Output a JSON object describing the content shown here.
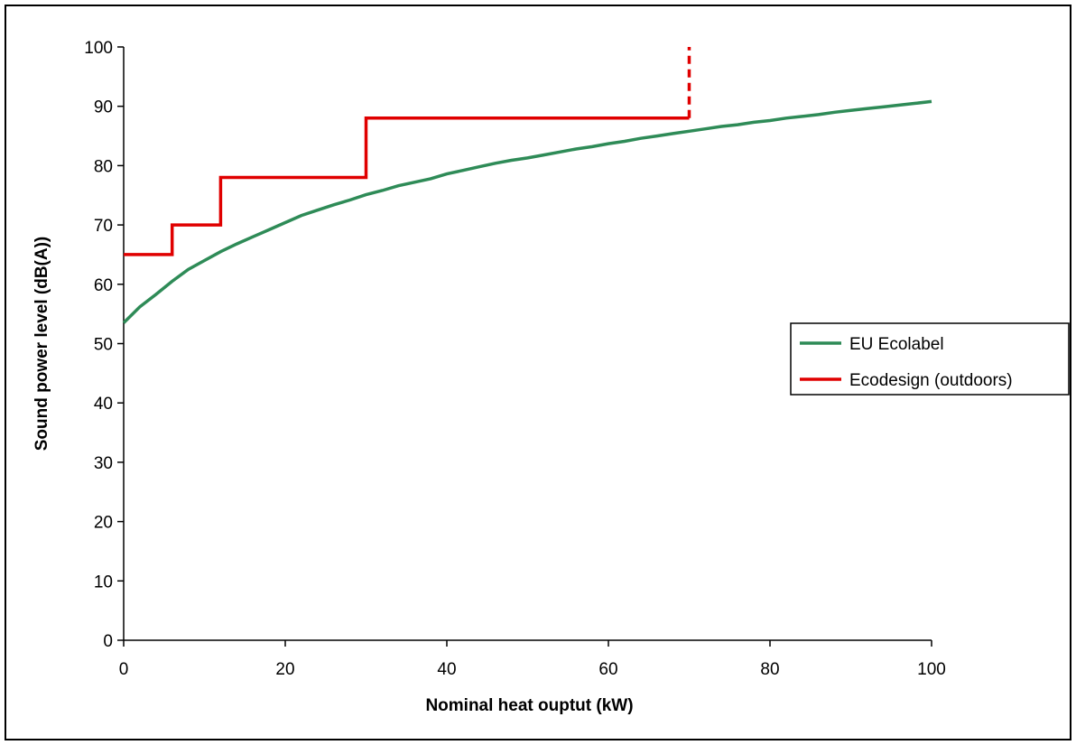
{
  "chart_data": {
    "type": "line",
    "title": "",
    "xlabel": "Nominal heat ouptut (kW)",
    "ylabel": "Sound power level (dB(A))",
    "xlim": [
      0,
      100
    ],
    "ylim": [
      0,
      100
    ],
    "x_ticks": [
      0,
      20,
      40,
      60,
      80,
      100
    ],
    "y_ticks": [
      0,
      10,
      20,
      30,
      40,
      50,
      60,
      70,
      80,
      90,
      100
    ],
    "grid": false,
    "legend_position": "right",
    "series": [
      {
        "name": "EU Ecolabel",
        "color": "#2e8b57",
        "style": "solid",
        "x": [
          0,
          2,
          4,
          6,
          8,
          10,
          12,
          14,
          16,
          18,
          20,
          22,
          24,
          26,
          28,
          30,
          32,
          34,
          36,
          38,
          40,
          42,
          44,
          46,
          48,
          50,
          52,
          54,
          56,
          58,
          60,
          62,
          64,
          66,
          68,
          70,
          72,
          74,
          76,
          78,
          80,
          82,
          84,
          86,
          88,
          90,
          92,
          94,
          96,
          98,
          100
        ],
        "y": [
          53.5,
          56.2,
          58.3,
          60.5,
          62.5,
          64.0,
          65.5,
          66.8,
          68.0,
          69.2,
          70.4,
          71.6,
          72.5,
          73.4,
          74.2,
          75.1,
          75.8,
          76.6,
          77.2,
          77.8,
          78.6,
          79.2,
          79.8,
          80.4,
          80.9,
          81.3,
          81.8,
          82.3,
          82.8,
          83.2,
          83.7,
          84.1,
          84.6,
          85.0,
          85.4,
          85.8,
          86.2,
          86.6,
          86.9,
          87.3,
          87.6,
          88.0,
          88.3,
          88.6,
          89.0,
          89.3,
          89.6,
          89.9,
          90.2,
          90.5,
          90.8
        ]
      },
      {
        "name": "Ecodesign (outdoors)",
        "color": "#e00000",
        "style": "solid",
        "x": [
          0,
          6,
          6,
          12,
          12,
          30,
          30,
          70
        ],
        "y": [
          65,
          65,
          70,
          70,
          78,
          78,
          88,
          88
        ]
      },
      {
        "name": "",
        "color": "#e00000",
        "style": "dashed",
        "x": [
          70,
          70
        ],
        "y": [
          88,
          100
        ]
      }
    ]
  }
}
